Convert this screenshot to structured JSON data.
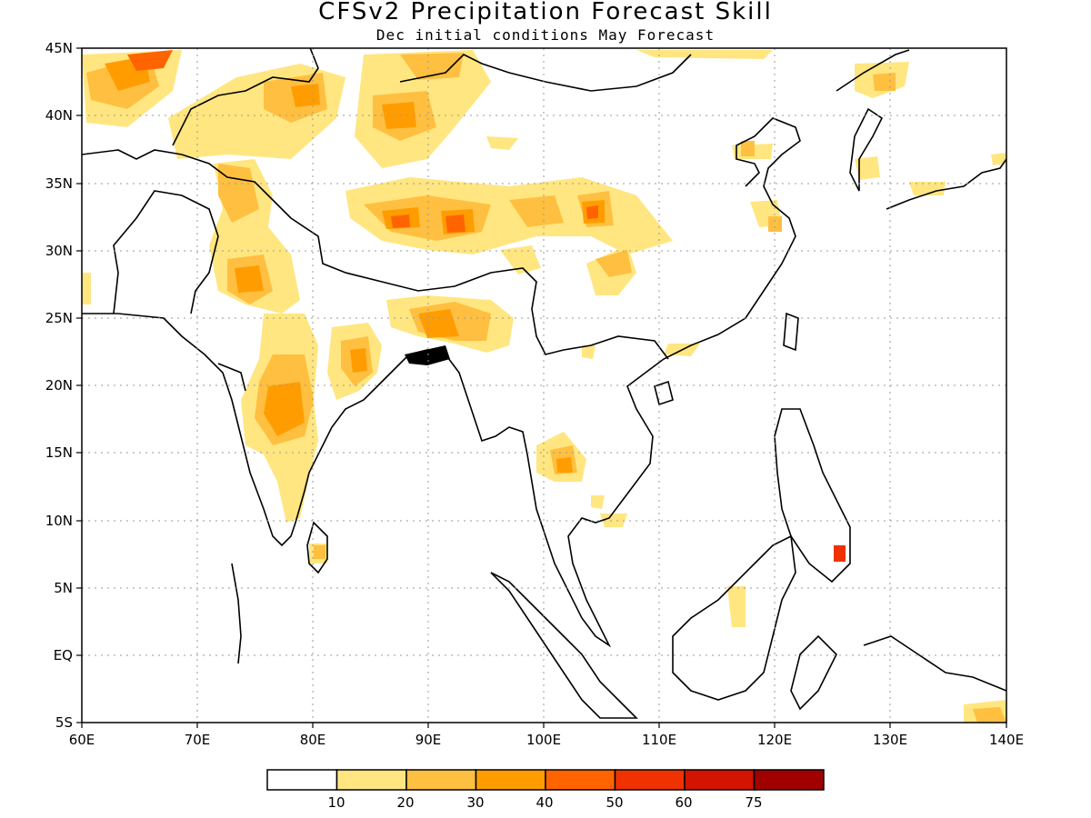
{
  "title": "CFSv2 Precipitation Forecast Skill",
  "subtitle": "Dec initial conditions  May Forecast",
  "map": {
    "lon_range": [
      60,
      140
    ],
    "lat_range": [
      -5,
      45
    ],
    "lon_labels": [
      "60E",
      "70E",
      "80E",
      "90E",
      "100E",
      "110E",
      "120E",
      "130E",
      "140E"
    ],
    "lat_labels": [
      "5S",
      "EQ",
      "5N",
      "10N",
      "15N",
      "20N",
      "25N",
      "30N",
      "35N",
      "40N",
      "45N"
    ],
    "grid": true
  },
  "colorbar": {
    "labels": [
      "10",
      "20",
      "30",
      "40",
      "50",
      "60",
      "75"
    ],
    "colors": [
      "#ffffff",
      "#ffe680",
      "#ffbf40",
      "#ff9d00",
      "#ff6400",
      "#f03200",
      "#d21400",
      "#a00000"
    ]
  }
}
